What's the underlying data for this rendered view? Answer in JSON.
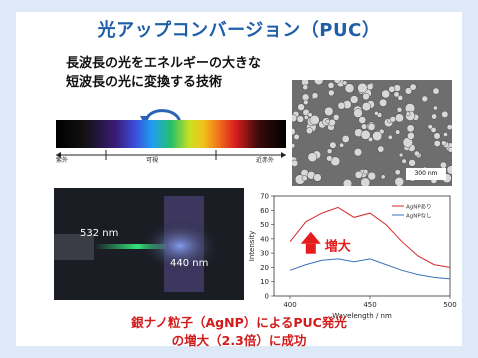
{
  "title": "光アップコンバージョン（PUC）",
  "description": {
    "line1": "長波長の光をエネルギーの大きな",
    "line2": "短波長の光に変換する技術"
  },
  "spectrum_labels": {
    "uv": "紫外",
    "visible": "可視",
    "nir": "近赤外"
  },
  "sem_image": {
    "scale_bar": "300 nm"
  },
  "photo": {
    "label_532": "532 nm",
    "label_440": "440 nm"
  },
  "chart_data": {
    "type": "line",
    "x": [
      400,
      410,
      420,
      430,
      440,
      450,
      460,
      470,
      480,
      490,
      500
    ],
    "ylabel": "Intensity",
    "xlabel": "Wavelength / nm",
    "ylim": [
      0,
      70
    ],
    "xlim": [
      390,
      500
    ],
    "xticks": [
      400,
      450,
      500
    ],
    "yticks": [
      0,
      10,
      20,
      30,
      40,
      50,
      60,
      70
    ],
    "series": [
      {
        "name": "AgNPあり",
        "color": "#d42a2a",
        "values": [
          38,
          52,
          58,
          62,
          55,
          58,
          50,
          38,
          28,
          22,
          20
        ]
      },
      {
        "name": "AgNPなし",
        "color": "#3a72b8",
        "values": [
          18,
          22,
          25,
          26,
          24,
          26,
          22,
          18,
          15,
          13,
          12
        ]
      }
    ],
    "annotation": "増大",
    "annotation_color": "#e51c1c",
    "legend_position": "top-right"
  },
  "footer": {
    "line1": "銀ナノ粒子（AgNP）によるPUC発光",
    "line2": "の増大（2.3倍）に成功"
  },
  "colors": {
    "title": "#1f5fa8",
    "footer": "#d21b1b",
    "background": "#dde9f6"
  }
}
